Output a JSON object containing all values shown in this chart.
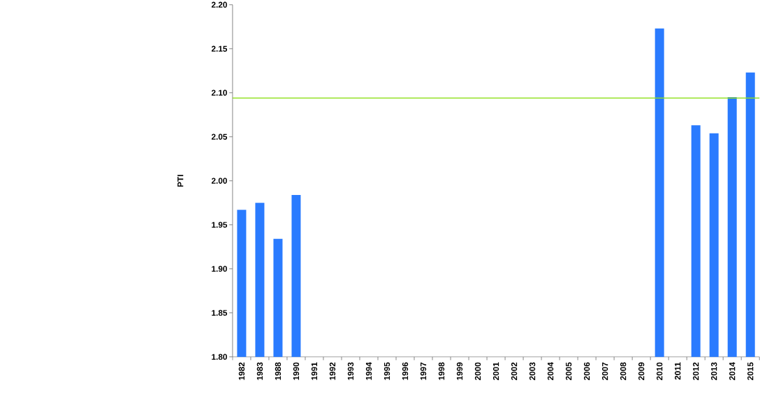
{
  "chart_data": {
    "type": "bar",
    "ylabel": "PTI",
    "categories": [
      "1982",
      "1983",
      "1988",
      "1990",
      "1991",
      "1992",
      "1993",
      "1994",
      "1995",
      "1996",
      "1997",
      "1998",
      "1999",
      "2000",
      "2001",
      "2002",
      "2003",
      "2004",
      "2005",
      "2006",
      "2007",
      "2008",
      "2009",
      "2010",
      "2011",
      "2012",
      "2013",
      "2014",
      "2015"
    ],
    "values": [
      1.967,
      1.975,
      1.934,
      1.984,
      null,
      null,
      null,
      null,
      null,
      null,
      null,
      null,
      null,
      null,
      null,
      null,
      null,
      null,
      null,
      null,
      null,
      null,
      null,
      2.173,
      null,
      2.063,
      2.054,
      2.095,
      2.123
    ],
    "color": "#2a7bff",
    "ylim": [
      1.8,
      2.2
    ],
    "yticks": [
      {
        "value": 1.8,
        "label": "1.80"
      },
      {
        "value": 1.85,
        "label": "1.85"
      },
      {
        "value": 1.9,
        "label": "1.90"
      },
      {
        "value": 1.95,
        "label": "1.95"
      },
      {
        "value": 2.0,
        "label": "2.00"
      },
      {
        "value": 2.05,
        "label": "2.05"
      },
      {
        "value": 2.1,
        "label": "2.10"
      },
      {
        "value": 2.15,
        "label": "2.15"
      },
      {
        "value": 2.2,
        "label": "2.20"
      }
    ],
    "ref_lines": [
      {
        "axis": "y",
        "value": 2.094,
        "color": "#8ee01a"
      }
    ],
    "grid": false
  }
}
